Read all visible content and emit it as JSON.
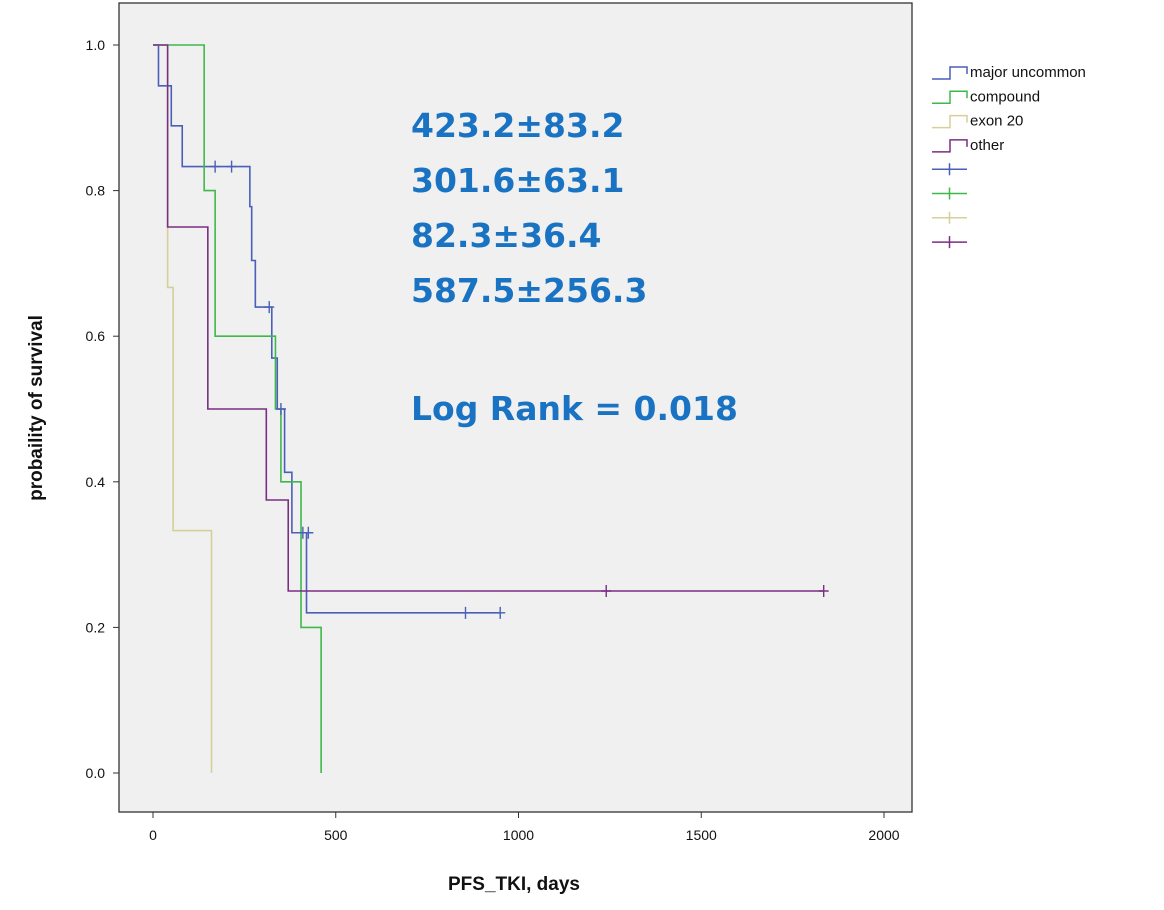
{
  "chart_data": {
    "type": "line",
    "subtype": "kaplan-meier",
    "xlabel": "PFS_TKI, days",
    "ylabel": "probaility of survival",
    "xlim": [
      -100,
      2100
    ],
    "ylim": [
      -0.07,
      1.05
    ],
    "x_ticks": [
      0,
      500,
      1000,
      1500,
      2000
    ],
    "x_tick_labels": [
      "0",
      "500",
      "1000",
      "1500",
      "2000"
    ],
    "y_ticks": [
      0.0,
      0.2,
      0.4,
      0.6,
      0.8,
      1.0
    ],
    "y_tick_labels": [
      "0.0",
      "0.2",
      "0.4",
      "0.6",
      "0.8",
      "1.0"
    ],
    "grid": false,
    "legend_position": "right-outside",
    "legend": [
      {
        "label": "major uncommon",
        "kind": "line",
        "color": "#4a5fb8"
      },
      {
        "label": "compound",
        "kind": "line",
        "color": "#3fb84a"
      },
      {
        "label": "exon 20",
        "kind": "line",
        "color": "#d6cf9a"
      },
      {
        "label": "other",
        "kind": "line",
        "color": "#7a2f84"
      },
      {
        "label": "",
        "kind": "censor",
        "color": "#4a5fb8"
      },
      {
        "label": "",
        "kind": "censor",
        "color": "#3fb84a"
      },
      {
        "label": "",
        "kind": "censor",
        "color": "#d6cf9a"
      },
      {
        "label": "",
        "kind": "censor",
        "color": "#7a2f84"
      }
    ],
    "series": [
      {
        "name": "major uncommon",
        "color": "#4a5fb8",
        "steps": [
          [
            0,
            1.0
          ],
          [
            15,
            0.944
          ],
          [
            50,
            0.889
          ],
          [
            80,
            0.833
          ],
          [
            265,
            0.778
          ],
          [
            270,
            0.704
          ],
          [
            280,
            0.64
          ],
          [
            325,
            0.57
          ],
          [
            340,
            0.5
          ],
          [
            360,
            0.413
          ],
          [
            380,
            0.33
          ],
          [
            420,
            0.22
          ],
          [
            950,
            0.22
          ]
        ],
        "censored": [
          [
            170,
            0.833
          ],
          [
            215,
            0.833
          ],
          [
            318,
            0.64
          ],
          [
            350,
            0.5
          ],
          [
            410,
            0.33
          ],
          [
            425,
            0.33
          ],
          [
            855,
            0.22
          ],
          [
            950,
            0.22
          ]
        ]
      },
      {
        "name": "compound",
        "color": "#3fb84a",
        "steps": [
          [
            0,
            1.0
          ],
          [
            140,
            0.8
          ],
          [
            170,
            0.6
          ],
          [
            335,
            0.5
          ],
          [
            350,
            0.4
          ],
          [
            405,
            0.2
          ],
          [
            460,
            0.0
          ]
        ],
        "censored": []
      },
      {
        "name": "exon 20",
        "color": "#d6cf9a",
        "steps": [
          [
            0,
            1.0
          ],
          [
            40,
            0.667
          ],
          [
            55,
            0.333
          ],
          [
            160,
            0.0
          ]
        ],
        "censored": []
      },
      {
        "name": "other",
        "color": "#7a2f84",
        "steps": [
          [
            0,
            1.0
          ],
          [
            40,
            0.75
          ],
          [
            150,
            0.5
          ],
          [
            310,
            0.375
          ],
          [
            370,
            0.25
          ],
          [
            1835,
            0.25
          ]
        ],
        "censored": [
          [
            1240,
            0.25
          ],
          [
            1835,
            0.25
          ]
        ]
      }
    ],
    "annotations": {
      "color": "#1a73c2",
      "lines": [
        "423.2±83.2",
        "301.6±63.1",
        "82.3±36.4",
        "587.5±256.3",
        "",
        "Log Rank = 0.018"
      ]
    }
  }
}
